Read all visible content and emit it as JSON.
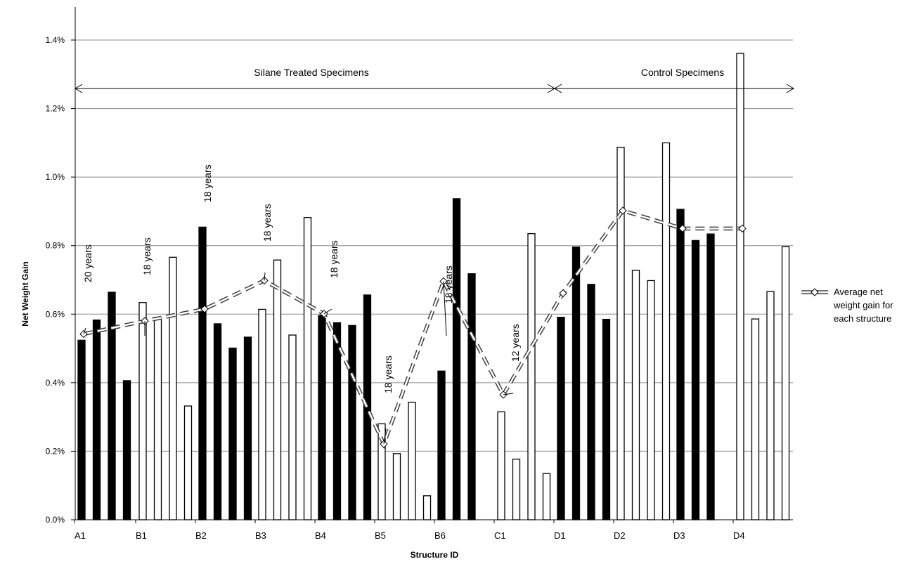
{
  "chart_data": {
    "type": "bar",
    "ylabel": "Net Weight Gain",
    "xlabel": "Structure ID",
    "ylim": [
      0,
      0.014
    ],
    "y_ticks": [
      "0.0%",
      "0.2%",
      "0.4%",
      "0.6%",
      "0.8%",
      "1.0%",
      "1.2%",
      "1.4%"
    ],
    "x_ticks": [
      "A1",
      "B1",
      "B2",
      "B3",
      "B4",
      "B5",
      "B6",
      "C1",
      "D1",
      "D2",
      "D3",
      "D4"
    ],
    "grid": true,
    "bars": [
      {
        "structure": "A1",
        "value": 0.00524,
        "fill": "black"
      },
      {
        "structure": "A1",
        "value": 0.00583,
        "fill": "black"
      },
      {
        "structure": "A1",
        "value": 0.00664,
        "fill": "black"
      },
      {
        "structure": "A1",
        "value": 0.00406,
        "fill": "black"
      },
      {
        "structure": "B1",
        "value": 0.00634,
        "fill": "white"
      },
      {
        "structure": "B1",
        "value": 0.00591,
        "fill": "white"
      },
      {
        "structure": "B1",
        "value": 0.00766,
        "fill": "white"
      },
      {
        "structure": "B1",
        "value": 0.00332,
        "fill": "white"
      },
      {
        "structure": "B2",
        "value": 0.00854,
        "fill": "black"
      },
      {
        "structure": "B2",
        "value": 0.00572,
        "fill": "black"
      },
      {
        "structure": "B2",
        "value": 0.00501,
        "fill": "black"
      },
      {
        "structure": "B2",
        "value": 0.00533,
        "fill": "black"
      },
      {
        "structure": "B3",
        "value": 0.00614,
        "fill": "white"
      },
      {
        "structure": "B3",
        "value": 0.00758,
        "fill": "white"
      },
      {
        "structure": "B3",
        "value": 0.00539,
        "fill": "white"
      },
      {
        "structure": "B3",
        "value": 0.00882,
        "fill": "white"
      },
      {
        "structure": "B4",
        "value": 0.00596,
        "fill": "black"
      },
      {
        "structure": "B4",
        "value": 0.00575,
        "fill": "black"
      },
      {
        "structure": "B4",
        "value": 0.00567,
        "fill": "black"
      },
      {
        "structure": "B4",
        "value": 0.00656,
        "fill": "black"
      },
      {
        "structure": "B5",
        "value": 0.0028,
        "fill": "white"
      },
      {
        "structure": "B5",
        "value": 0.00193,
        "fill": "white"
      },
      {
        "structure": "B5",
        "value": 0.00343,
        "fill": "white"
      },
      {
        "structure": "B5",
        "value": 0.0007,
        "fill": "white"
      },
      {
        "structure": "B6",
        "value": 0.00434,
        "fill": "black"
      },
      {
        "structure": "B6",
        "value": 0.00937,
        "fill": "black"
      },
      {
        "structure": "B6",
        "value": 0.00718,
        "fill": "black"
      },
      {
        "structure": "C1",
        "value": 0.00315,
        "fill": "white"
      },
      {
        "structure": "C1",
        "value": 0.00177,
        "fill": "white"
      },
      {
        "structure": "C1",
        "value": 0.00835,
        "fill": "white"
      },
      {
        "structure": "C1",
        "value": 0.00135,
        "fill": "white"
      },
      {
        "structure": "D1",
        "value": 0.00591,
        "fill": "black"
      },
      {
        "structure": "D1",
        "value": 0.00796,
        "fill": "black"
      },
      {
        "structure": "D1",
        "value": 0.00687,
        "fill": "black"
      },
      {
        "structure": "D1",
        "value": 0.00585,
        "fill": "black"
      },
      {
        "structure": "D2",
        "value": 0.01087,
        "fill": "white"
      },
      {
        "structure": "D2",
        "value": 0.00728,
        "fill": "white"
      },
      {
        "structure": "D2",
        "value": 0.00698,
        "fill": "white"
      },
      {
        "structure": "D2",
        "value": 0.011,
        "fill": "white"
      },
      {
        "structure": "D3",
        "value": 0.00906,
        "fill": "black"
      },
      {
        "structure": "D3",
        "value": 0.00815,
        "fill": "black"
      },
      {
        "structure": "D3",
        "value": 0.00834,
        "fill": "black"
      },
      {
        "structure": "D4",
        "value": 0.01361,
        "fill": "white"
      },
      {
        "structure": "D4",
        "value": 0.00586,
        "fill": "white"
      },
      {
        "structure": "D4",
        "value": 0.00666,
        "fill": "white"
      },
      {
        "structure": "D4",
        "value": 0.00797,
        "fill": "white"
      }
    ],
    "series": [
      {
        "name": "Average net weight gain for each structure",
        "type": "line",
        "style": "dashed",
        "marker": "diamond-open",
        "points": [
          {
            "structure": "A1",
            "value": 0.00542
          },
          {
            "structure": "B1",
            "value": 0.0058
          },
          {
            "structure": "B2",
            "value": 0.00615
          },
          {
            "structure": "B3",
            "value": 0.00698
          },
          {
            "structure": "B4",
            "value": 0.00601
          },
          {
            "structure": "B5",
            "value": 0.00221
          },
          {
            "structure": "B6",
            "value": 0.00696
          },
          {
            "structure": "C1",
            "value": 0.00365
          },
          {
            "structure": "D1",
            "value": 0.00661
          },
          {
            "structure": "D2",
            "value": 0.00902
          },
          {
            "structure": "D3",
            "value": 0.0085
          },
          {
            "structure": "D4",
            "value": 0.0085
          }
        ]
      }
    ],
    "age_labels": [
      {
        "structure": "A1",
        "text": "20 years"
      },
      {
        "structure": "B1",
        "text": "18 years"
      },
      {
        "structure": "B2",
        "text": "18 years"
      },
      {
        "structure": "B3",
        "text": "18 years"
      },
      {
        "structure": "B4",
        "text": "18 years"
      },
      {
        "structure": "B5",
        "text": "18 years"
      },
      {
        "structure": "B6",
        "text": "18 years"
      },
      {
        "structure": "C1",
        "text": "12 years"
      }
    ],
    "annotations": [
      {
        "text": "Silane Treated Specimens",
        "from": "A1",
        "to": "D1"
      },
      {
        "text": "Control Specimens",
        "from": "D1",
        "to": "end"
      }
    ],
    "legend": {
      "position": "right"
    }
  }
}
